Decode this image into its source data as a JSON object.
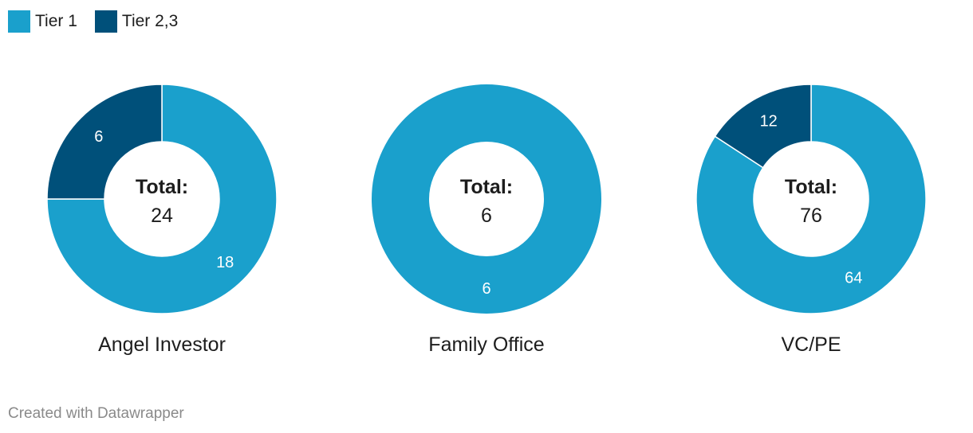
{
  "legend": [
    {
      "label": "Tier 1",
      "color": "#1aa0cc"
    },
    {
      "label": "Tier 2,3",
      "color": "#00507a"
    }
  ],
  "footer": "Created with Datawrapper",
  "chart_data": {
    "type": "donut",
    "series_names": [
      "Tier 1",
      "Tier 2,3"
    ],
    "colors": [
      "#1aa0cc",
      "#00507a"
    ],
    "total_label": "Total:",
    "charts": [
      {
        "category": "Angel Investor",
        "values": [
          18,
          6
        ],
        "total": 24
      },
      {
        "category": "Family Office",
        "values": [
          6,
          0
        ],
        "total": 6
      },
      {
        "category": "VC/PE",
        "values": [
          64,
          12
        ],
        "total": 76
      }
    ]
  }
}
